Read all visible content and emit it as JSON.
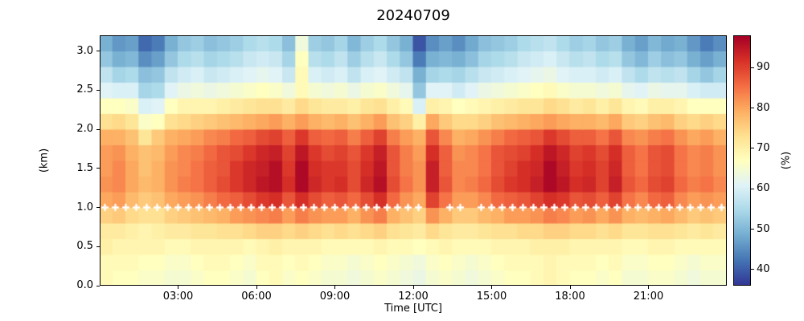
{
  "chart_data": {
    "type": "heatmap",
    "title": "20240709",
    "xlabel": "Time [UTC]",
    "ylabel": "(km)",
    "colorbar_label": "(%)",
    "value_unit": "%",
    "x_range": [
      0,
      24
    ],
    "y_range": [
      0,
      3.2
    ],
    "vmin": 36,
    "vmax": 98,
    "colormap": "RdYlBu_r",
    "colormap_stops": [
      [
        0.0,
        "#313695"
      ],
      [
        0.1,
        "#4575b4"
      ],
      [
        0.2,
        "#74add1"
      ],
      [
        0.3,
        "#abd9e9"
      ],
      [
        0.4,
        "#e0f3f8"
      ],
      [
        0.5,
        "#ffffbf"
      ],
      [
        0.6,
        "#fee090"
      ],
      [
        0.7,
        "#fdae61"
      ],
      [
        0.8,
        "#f46d43"
      ],
      [
        0.9,
        "#d73027"
      ],
      [
        1.0,
        "#a50026"
      ]
    ],
    "x_ticks": [
      {
        "value": 3,
        "label": "03:00"
      },
      {
        "value": 6,
        "label": "06:00"
      },
      {
        "value": 9,
        "label": "09:00"
      },
      {
        "value": 12,
        "label": "12:00"
      },
      {
        "value": 15,
        "label": "15:00"
      },
      {
        "value": 18,
        "label": "18:00"
      },
      {
        "value": 21,
        "label": "21:00"
      }
    ],
    "y_ticks": [
      {
        "value": 0.0,
        "label": "0.0"
      },
      {
        "value": 0.5,
        "label": "0.5"
      },
      {
        "value": 1.0,
        "label": "1.0"
      },
      {
        "value": 1.5,
        "label": "1.5"
      },
      {
        "value": 2.0,
        "label": "2.0"
      },
      {
        "value": 2.5,
        "label": "2.5"
      },
      {
        "value": 3.0,
        "label": "3.0"
      }
    ],
    "colorbar_ticks": [
      {
        "value": 40,
        "label": "40"
      },
      {
        "value": 50,
        "label": "50"
      },
      {
        "value": 60,
        "label": "60"
      },
      {
        "value": 70,
        "label": "70"
      },
      {
        "value": 80,
        "label": "80"
      },
      {
        "value": 90,
        "label": "90"
      }
    ],
    "times_hours": [
      0.25,
      0.75,
      1.25,
      1.75,
      2.25,
      2.75,
      3.25,
      3.75,
      4.25,
      4.75,
      5.25,
      5.75,
      6.25,
      6.75,
      7.25,
      7.75,
      8.25,
      8.75,
      9.25,
      9.75,
      10.25,
      10.75,
      11.25,
      11.75,
      12.25,
      12.75,
      13.25,
      13.75,
      14.25,
      14.75,
      15.25,
      15.75,
      16.25,
      16.75,
      17.25,
      17.75,
      18.25,
      18.75,
      19.25,
      19.75,
      20.25,
      20.75,
      21.25,
      21.75,
      22.25,
      22.75,
      23.25,
      23.75
    ],
    "heights_km": [
      0.1,
      0.3,
      0.5,
      0.7,
      0.9,
      1.1,
      1.3,
      1.5,
      1.7,
      1.9,
      2.1,
      2.3,
      2.5,
      2.7,
      2.9,
      3.1
    ],
    "grid_rows_bottom_to_top": true,
    "grid": [
      [
        68,
        67,
        67,
        66,
        66,
        65,
        65,
        66,
        67,
        67,
        66,
        65,
        67,
        68,
        66,
        67,
        66,
        65,
        65,
        64,
        65,
        66,
        65,
        64,
        63,
        65,
        66,
        65,
        64,
        65,
        66,
        67,
        67,
        68,
        69,
        68,
        67,
        67,
        66,
        67,
        65,
        65,
        66,
        66,
        65,
        64,
        65,
        65
      ],
      [
        68,
        68,
        68,
        67,
        67,
        66,
        66,
        67,
        68,
        68,
        67,
        66,
        68,
        68,
        67,
        68,
        67,
        66,
        66,
        65,
        66,
        67,
        66,
        65,
        64,
        66,
        67,
        66,
        65,
        66,
        67,
        68,
        68,
        68,
        69,
        68,
        68,
        68,
        67,
        68,
        66,
        66,
        67,
        67,
        66,
        65,
        66,
        66
      ],
      [
        70,
        69,
        69,
        69,
        69,
        68,
        68,
        69,
        69,
        69,
        69,
        68,
        69,
        70,
        69,
        69,
        69,
        68,
        68,
        68,
        68,
        69,
        68,
        68,
        67,
        68,
        69,
        68,
        68,
        68,
        69,
        69,
        69,
        70,
        70,
        70,
        69,
        69,
        69,
        69,
        68,
        68,
        69,
        69,
        68,
        68,
        68,
        68
      ],
      [
        71,
        71,
        70,
        69,
        70,
        71,
        71,
        72,
        72,
        73,
        73,
        74,
        75,
        75,
        74,
        75,
        74,
        73,
        74,
        73,
        74,
        75,
        73,
        72,
        71,
        74,
        72,
        71,
        71,
        72,
        73,
        73,
        74,
        74,
        75,
        75,
        74,
        74,
        73,
        74,
        72,
        72,
        73,
        73,
        72,
        71,
        72,
        71
      ],
      [
        75,
        76,
        74,
        73,
        73,
        75,
        76,
        77,
        78,
        79,
        81,
        82,
        83,
        84,
        81,
        84,
        82,
        81,
        81,
        79,
        82,
        84,
        79,
        77,
        75,
        82,
        79,
        76,
        76,
        78,
        79,
        81,
        81,
        82,
        84,
        83,
        81,
        82,
        80,
        82,
        79,
        78,
        79,
        80,
        78,
        76,
        77,
        76
      ],
      [
        80,
        81,
        78,
        76,
        77,
        80,
        81,
        82,
        84,
        86,
        87,
        89,
        91,
        92,
        88,
        92,
        89,
        87,
        88,
        86,
        89,
        92,
        86,
        82,
        80,
        90,
        85,
        81,
        81,
        83,
        86,
        87,
        88,
        90,
        92,
        91,
        88,
        89,
        87,
        90,
        85,
        83,
        86,
        87,
        83,
        81,
        82,
        81
      ],
      [
        82,
        83,
        80,
        78,
        79,
        82,
        84,
        85,
        87,
        89,
        91,
        93,
        95,
        96,
        92,
        97,
        93,
        91,
        92,
        89,
        93,
        96,
        89,
        85,
        82,
        94,
        88,
        83,
        84,
        86,
        89,
        91,
        92,
        94,
        97,
        95,
        92,
        93,
        90,
        94,
        88,
        86,
        89,
        90,
        86,
        84,
        85,
        83
      ],
      [
        81,
        83,
        80,
        77,
        79,
        82,
        83,
        85,
        87,
        88,
        91,
        93,
        94,
        96,
        91,
        97,
        92,
        91,
        91,
        89,
        92,
        95,
        88,
        84,
        82,
        94,
        87,
        83,
        83,
        85,
        88,
        90,
        92,
        93,
        97,
        94,
        91,
        92,
        90,
        93,
        87,
        85,
        88,
        89,
        85,
        83,
        84,
        82
      ],
      [
        81,
        82,
        79,
        77,
        78,
        81,
        83,
        84,
        86,
        88,
        89,
        91,
        93,
        94,
        90,
        95,
        91,
        89,
        90,
        88,
        91,
        94,
        88,
        84,
        81,
        92,
        87,
        82,
        83,
        85,
        88,
        89,
        90,
        92,
        95,
        93,
        90,
        91,
        89,
        92,
        87,
        85,
        88,
        89,
        85,
        83,
        84,
        82
      ],
      [
        79,
        79,
        77,
        72,
        76,
        79,
        80,
        81,
        83,
        84,
        86,
        87,
        89,
        90,
        87,
        91,
        87,
        86,
        87,
        84,
        87,
        90,
        84,
        81,
        79,
        88,
        83,
        79,
        80,
        82,
        84,
        86,
        87,
        88,
        91,
        89,
        87,
        87,
        85,
        88,
        83,
        82,
        84,
        85,
        82,
        80,
        81,
        79
      ],
      [
        73,
        74,
        72,
        66,
        67,
        73,
        74,
        75,
        76,
        77,
        78,
        79,
        80,
        81,
        79,
        81,
        79,
        78,
        79,
        77,
        79,
        81,
        77,
        75,
        70,
        80,
        76,
        74,
        74,
        75,
        77,
        78,
        79,
        80,
        81,
        80,
        79,
        79,
        78,
        80,
        76,
        75,
        77,
        78,
        75,
        74,
        75,
        74
      ],
      [
        67,
        67,
        66,
        60,
        61,
        67,
        69,
        69,
        69,
        70,
        71,
        72,
        73,
        73,
        71,
        74,
        72,
        71,
        71,
        70,
        72,
        73,
        70,
        68,
        60,
        70,
        69,
        67,
        68,
        69,
        70,
        71,
        72,
        72,
        74,
        73,
        71,
        72,
        70,
        72,
        69,
        68,
        70,
        70,
        69,
        67,
        67,
        67
      ],
      [
        61,
        60,
        60,
        54,
        55,
        61,
        63,
        64,
        63,
        64,
        65,
        66,
        67,
        66,
        64,
        68,
        65,
        64,
        65,
        63,
        65,
        66,
        64,
        62,
        52,
        61,
        61,
        59,
        61,
        63,
        64,
        65,
        66,
        67,
        68,
        66,
        65,
        65,
        64,
        65,
        62,
        61,
        63,
        62,
        62,
        60,
        59,
        59
      ],
      [
        57,
        54,
        55,
        51,
        52,
        57,
        59,
        60,
        58,
        59,
        60,
        61,
        62,
        61,
        58,
        68,
        60,
        59,
        60,
        57,
        60,
        61,
        59,
        57,
        49,
        54,
        55,
        54,
        56,
        58,
        59,
        60,
        61,
        62,
        63,
        61,
        60,
        60,
        59,
        60,
        57,
        55,
        57,
        56,
        57,
        54,
        52,
        54
      ],
      [
        52,
        49,
        50,
        45,
        47,
        52,
        55,
        56,
        54,
        55,
        56,
        58,
        59,
        58,
        54,
        67,
        56,
        55,
        57,
        53,
        56,
        58,
        55,
        52,
        43,
        49,
        50,
        49,
        51,
        54,
        55,
        56,
        58,
        59,
        60,
        58,
        56,
        57,
        55,
        56,
        52,
        50,
        53,
        51,
        52,
        49,
        47,
        49
      ],
      [
        49,
        46,
        47,
        41,
        43,
        49,
        52,
        53,
        51,
        52,
        53,
        55,
        56,
        55,
        51,
        64,
        53,
        52,
        54,
        50,
        53,
        55,
        52,
        49,
        39,
        45,
        47,
        45,
        48,
        51,
        52,
        53,
        55,
        56,
        57,
        55,
        53,
        54,
        52,
        53,
        49,
        47,
        50,
        48,
        49,
        46,
        43,
        45
      ]
    ],
    "cloud_base_markers": {
      "height_km": 1.0,
      "symbol": "plus",
      "color": "#ffffff",
      "times_hours": [
        0.2,
        0.6,
        1.0,
        1.4,
        1.8,
        2.2,
        2.6,
        3.0,
        3.4,
        3.8,
        4.2,
        4.6,
        5.0,
        5.4,
        5.8,
        6.2,
        6.6,
        7.0,
        7.4,
        7.8,
        8.2,
        8.6,
        9.0,
        9.4,
        9.8,
        10.2,
        10.6,
        11.0,
        11.4,
        11.8,
        12.2,
        13.4,
        13.8,
        14.6,
        15.0,
        15.4,
        15.8,
        16.2,
        16.6,
        17.0,
        17.4,
        17.8,
        18.2,
        18.6,
        19.0,
        19.4,
        19.8,
        20.2,
        20.6,
        21.0,
        21.4,
        21.8,
        22.2,
        22.6,
        23.0,
        23.4,
        23.8
      ]
    }
  }
}
